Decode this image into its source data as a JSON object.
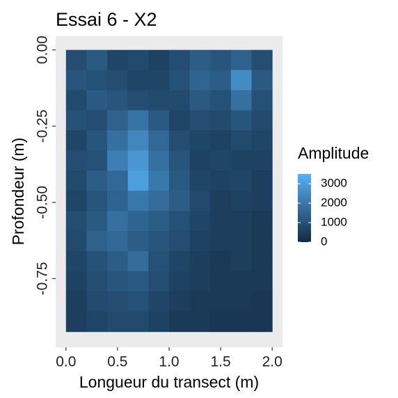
{
  "chart_data": {
    "type": "heatmap",
    "title": "Essai 6 - X2",
    "xlabel": "Longueur du transect (m)",
    "ylabel": "Profondeur (m)",
    "legend_title": "Amplitude",
    "x": [
      0.1,
      0.3,
      0.5,
      0.7,
      0.9,
      1.1,
      1.3,
      1.5,
      1.7,
      1.9
    ],
    "y": [
      -0.033,
      -0.099,
      -0.165,
      -0.231,
      -0.297,
      -0.363,
      -0.429,
      -0.495,
      -0.561,
      -0.627,
      -0.693,
      -0.759,
      -0.825,
      -0.891
    ],
    "z": [
      [
        900,
        1200,
        700,
        800,
        600,
        900,
        1300,
        1100,
        1400,
        900
      ],
      [
        1100,
        1000,
        900,
        700,
        700,
        1000,
        1500,
        1300,
        2500,
        1200
      ],
      [
        800,
        1200,
        1100,
        900,
        800,
        800,
        1200,
        1000,
        1800,
        1000
      ],
      [
        1000,
        900,
        1400,
        1900,
        1200,
        700,
        900,
        800,
        1100,
        800
      ],
      [
        700,
        1100,
        1800,
        2400,
        1600,
        900,
        700,
        600,
        800,
        700
      ],
      [
        900,
        1000,
        2200,
        2800,
        1800,
        1100,
        600,
        700,
        600,
        600
      ],
      [
        800,
        1300,
        1600,
        3000,
        2000,
        1200,
        700,
        600,
        700,
        500
      ],
      [
        700,
        1100,
        1500,
        2000,
        1700,
        1300,
        800,
        500,
        600,
        500
      ],
      [
        900,
        1200,
        1800,
        1500,
        1300,
        1000,
        700,
        500,
        500,
        400
      ],
      [
        800,
        1400,
        1600,
        1300,
        1100,
        900,
        600,
        500,
        500,
        400
      ],
      [
        700,
        1000,
        1300,
        1700,
        1000,
        700,
        500,
        400,
        500,
        400
      ],
      [
        600,
        900,
        1100,
        1200,
        900,
        600,
        500,
        400,
        400,
        400
      ],
      [
        500,
        800,
        900,
        1000,
        700,
        500,
        400,
        400,
        400,
        300
      ],
      [
        500,
        700,
        800,
        800,
        600,
        400,
        400,
        300,
        300,
        300
      ]
    ],
    "xlim": [
      -0.1,
      2.1
    ],
    "xticks": [
      {
        "value": 0,
        "label": "0.0"
      },
      {
        "value": 0.5,
        "label": "0.5"
      },
      {
        "value": 1,
        "label": "1.0"
      },
      {
        "value": 1.5,
        "label": "1.5"
      },
      {
        "value": 2,
        "label": "2.0"
      }
    ],
    "ylim": [
      -0.975,
      0.045
    ],
    "yticks": [
      {
        "value": 0,
        "label": "0.00"
      },
      {
        "value": -0.25,
        "label": "-0.25"
      },
      {
        "value": -0.5,
        "label": "-0.50"
      },
      {
        "value": -0.75,
        "label": "-0.75"
      }
    ],
    "zlim": [
      0,
      3500
    ],
    "zticks": [
      0,
      1000,
      2000,
      3000
    ],
    "colors": [
      "#132B43",
      "#56B1F7"
    ],
    "panel_color": "#EBEBEB"
  }
}
